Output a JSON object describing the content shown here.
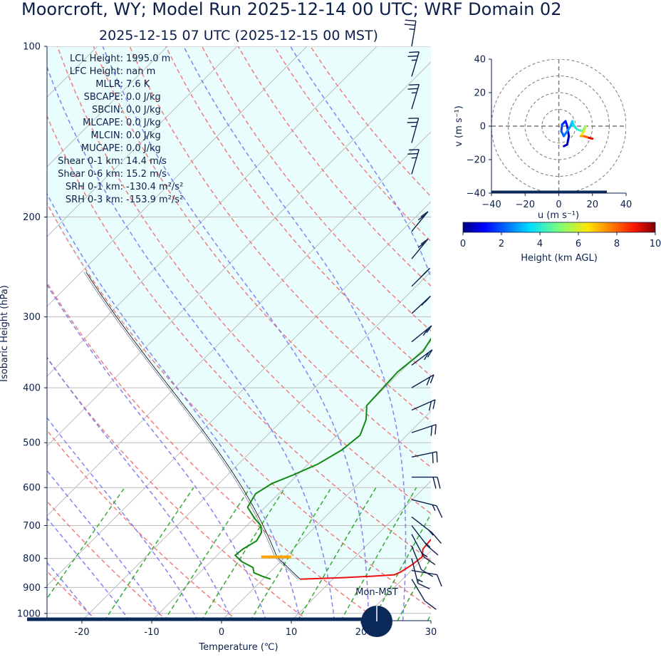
{
  "header": {
    "title": "Moorcroft, WY; Model Run 2025-12-14 00 UTC; WRF Domain 02",
    "subtitle": "2025-12-15 07 UTC  (2025-12-15 00 MST)"
  },
  "indices": [
    {
      "label": "LCL Height:",
      "value": "1995.0 m"
    },
    {
      "label": "LFC Height:",
      "value": "nan m"
    },
    {
      "label": "MLLR:",
      "value": "7.6 K"
    },
    {
      "label": "SBCAPE:",
      "value": "0.0 J/kg"
    },
    {
      "label": "SBCIN:",
      "value": "0.0 J/kg"
    },
    {
      "label": "MLCAPE:",
      "value": "0.0 J/kg"
    },
    {
      "label": "MLCIN:",
      "value": "0.0 J/kg"
    },
    {
      "label": "MUCAPE:",
      "value": "0.0 J/kg"
    },
    {
      "label": "Shear 0-1 km:",
      "value": "14.4 m/s"
    },
    {
      "label": "Shear 0-6 km:",
      "value": "15.2 m/s"
    },
    {
      "label": "SRH 0-1 km:",
      "value": "-130.4 m²/s²"
    },
    {
      "label": "SRH 0-3 km:",
      "value": "-153.9 m²/s²"
    }
  ],
  "moon_label": "Mon-MST",
  "colors": {
    "temperature": "#ee1111",
    "dewpoint": "#118811",
    "parcel": "#000000",
    "dry_adiabat": "#f07070",
    "moist_adiabat": "#7777ee",
    "mixing_ratio": "#33aa33",
    "cape_fill": "#e9fdfd",
    "lcl_marker": "#ffa500",
    "barb": "#0b1f4a"
  },
  "chart_data": [
    {
      "type": "skew-t",
      "xlabel": "Temperature (℃)",
      "ylabel": "Isobaric Height (hPa)",
      "xlim": [
        -25,
        30
      ],
      "ylim": [
        1030,
        100
      ],
      "x_ticks": [
        -20,
        -10,
        0,
        10,
        20,
        30
      ],
      "y_ticks": [
        100,
        200,
        300,
        400,
        500,
        600,
        700,
        800,
        900,
        1000
      ],
      "lcl_pressure": 795,
      "series": [
        {
          "name": "",
          "role": "temperature",
          "points": [
            [
              870,
              5.3
            ],
            [
              865,
              11
            ],
            [
              860,
              15
            ],
            [
              855,
              18.2
            ],
            [
              845,
              18.7
            ],
            [
              820,
              19.3
            ],
            [
              795,
              19.6
            ],
            [
              770,
              18.6
            ],
            [
              745,
              18.4
            ],
            [
              715,
              18.4
            ],
            [
              690,
              17.9
            ],
            [
              650,
              16.2
            ],
            [
              630,
              14.7
            ],
            [
              610,
              13.6
            ],
            [
              585,
              12.9
            ],
            [
              560,
              12.2
            ],
            [
              530,
              10.9
            ],
            [
              500,
              9.3
            ],
            [
              470,
              7.4
            ],
            [
              450,
              6.0
            ],
            [
              420,
              4.8
            ],
            [
              390,
              3.6
            ],
            [
              350,
              1.6
            ],
            [
              320,
              -0.4
            ],
            [
              300,
              -1.7
            ],
            [
              275,
              -3.5
            ],
            [
              250,
              -5.2
            ],
            [
              228,
              -6.0
            ],
            [
              212,
              -6.4
            ],
            [
              200,
              -5.9
            ],
            [
              185,
              -5.6
            ],
            [
              170,
              -5.8
            ],
            [
              160,
              -6.3
            ],
            [
              150,
              -6.6
            ],
            [
              140,
              -7.6
            ],
            [
              125,
              -9.6
            ],
            [
              115,
              -10.1
            ],
            [
              107,
              -10.9
            ],
            [
              100,
              -11.2
            ]
          ]
        },
        {
          "name": "",
          "role": "dewpoint",
          "points": [
            [
              870,
              1.1
            ],
            [
              860,
              -0.5
            ],
            [
              848,
              -2.2
            ],
            [
              830,
              -3.1
            ],
            [
              810,
              -5.6
            ],
            [
              790,
              -7.4
            ],
            [
              770,
              -7.2
            ],
            [
              745,
              -6.4
            ],
            [
              720,
              -6.9
            ],
            [
              700,
              -8.0
            ],
            [
              680,
              -9.9
            ],
            [
              650,
              -12.5
            ],
            [
              615,
              -13.3
            ],
            [
              590,
              -12.4
            ],
            [
              570,
              -10.6
            ],
            [
              545,
              -8.6
            ],
            [
              515,
              -7.2
            ],
            [
              485,
              -6.7
            ],
            [
              455,
              -8.1
            ],
            [
              430,
              -10.0
            ],
            [
              400,
              -10.2
            ],
            [
              375,
              -10.4
            ],
            [
              345,
              -9.7
            ],
            [
              310,
              -11.1
            ],
            [
              285,
              -11.5
            ],
            [
              255,
              -11.3
            ],
            [
              225,
              -11.7
            ],
            [
              210,
              -12.5
            ],
            [
              195,
              -13.1
            ],
            [
              182,
              -13.9
            ],
            [
              170,
              -13.9
            ],
            [
              155,
              -14.3
            ],
            [
              138,
              -14.3
            ],
            [
              125,
              -14.2
            ],
            [
              111,
              -14.4
            ],
            [
              100,
              -14.3
            ]
          ]
        },
        {
          "name": "",
          "role": "parcel",
          "points": [
            [
              870,
              5.3
            ],
            [
              795,
              -1.2
            ],
            [
              700,
              -9.0
            ],
            [
              600,
              -18.3
            ],
            [
              500,
              -29.0
            ],
            [
              400,
              -43.0
            ],
            [
              300,
              -61.0
            ]
          ]
        }
      ],
      "wind_barbs": [
        {
          "p": 100,
          "u": -2.0,
          "v": 12.0
        },
        {
          "p": 113,
          "u": -3.6,
          "v": 12.0
        },
        {
          "p": 129,
          "u": -3.6,
          "v": 12.0
        },
        {
          "p": 148,
          "u": -3.6,
          "v": 13.0
        },
        {
          "p": 168,
          "u": -4.0,
          "v": 13.5
        },
        {
          "p": 212,
          "u": -7.0,
          "v": 8.5
        },
        {
          "p": 237,
          "u": -7.0,
          "v": 8.5
        },
        {
          "p": 265,
          "u": -7.5,
          "v": 7.5
        },
        {
          "p": 296,
          "u": -7.5,
          "v": 7.0
        },
        {
          "p": 332,
          "u": -8.0,
          "v": 6.5
        },
        {
          "p": 365,
          "u": -8.0,
          "v": 6.0
        },
        {
          "p": 400,
          "u": -8.5,
          "v": 5.0
        },
        {
          "p": 438,
          "u": -9.0,
          "v": 4.0
        },
        {
          "p": 480,
          "u": -9.0,
          "v": 3.0
        },
        {
          "p": 530,
          "u": -9.5,
          "v": 2.0
        },
        {
          "p": 575,
          "u": -9.5,
          "v": 0.0
        },
        {
          "p": 630,
          "u": -8.0,
          "v": -2.0
        },
        {
          "p": 676,
          "u": -6.5,
          "v": -5.0
        },
        {
          "p": 700,
          "u": -5.0,
          "v": -6.5
        },
        {
          "p": 725,
          "u": -4.0,
          "v": -7.5
        },
        {
          "p": 760,
          "u": -2.0,
          "v": -5.0
        },
        {
          "p": 800,
          "u": -2.0,
          "v": -8.0
        },
        {
          "p": 840,
          "u": -6.0,
          "v": -1.0
        },
        {
          "p": 870,
          "u": -3.0,
          "v": -5.0
        }
      ]
    },
    {
      "type": "hodograph",
      "xlabel": "u (m s⁻¹)",
      "ylabel": "v (m s⁻¹)",
      "xlim": [
        -40,
        40
      ],
      "ylim": [
        -40,
        40
      ],
      "x_ticks": [
        -40,
        -20,
        0,
        20,
        40
      ],
      "y_ticks": [
        -40,
        -20,
        0,
        20,
        40
      ],
      "ring_speeds": [
        10,
        20,
        30,
        40
      ],
      "points": [
        {
          "u": 3.0,
          "v": -12.0,
          "h": 0.2
        },
        {
          "u": 5.0,
          "v": -11.0,
          "h": 0.5
        },
        {
          "u": 6.0,
          "v": -6.0,
          "h": 0.8
        },
        {
          "u": 5.0,
          "v": 0.0,
          "h": 1.0
        },
        {
          "u": 4.0,
          "v": 3.0,
          "h": 1.3
        },
        {
          "u": 2.0,
          "v": 1.0,
          "h": 1.6
        },
        {
          "u": 1.5,
          "v": -3.0,
          "h": 1.9
        },
        {
          "u": 3.0,
          "v": -6.0,
          "h": 2.2
        },
        {
          "u": 5.0,
          "v": -3.0,
          "h": 2.5
        },
        {
          "u": 7.0,
          "v": 0.0,
          "h": 2.8
        },
        {
          "u": 8.0,
          "v": 3.0,
          "h": 3.2
        },
        {
          "u": 9.0,
          "v": 0.0,
          "h": 3.6
        },
        {
          "u": 11.0,
          "v": -2.0,
          "h": 4.0
        },
        {
          "u": 14.0,
          "v": -3.0,
          "h": 4.5
        },
        {
          "u": 16.0,
          "v": 0.0,
          "h": 5.2
        },
        {
          "u": 15.0,
          "v": -3.0,
          "h": 6.0
        },
        {
          "u": 13.0,
          "v": -6.0,
          "h": 6.8
        },
        {
          "u": 15.0,
          "v": -6.0,
          "h": 7.6
        },
        {
          "u": 18.0,
          "v": -7.0,
          "h": 8.6
        },
        {
          "u": 20.0,
          "v": -7.5,
          "h": 9.8
        }
      ]
    },
    {
      "type": "colorbar",
      "xlabel": "Height (km AGL)",
      "range": [
        0,
        10
      ],
      "x_ticks": [
        0,
        2,
        4,
        6,
        8,
        10
      ]
    }
  ]
}
